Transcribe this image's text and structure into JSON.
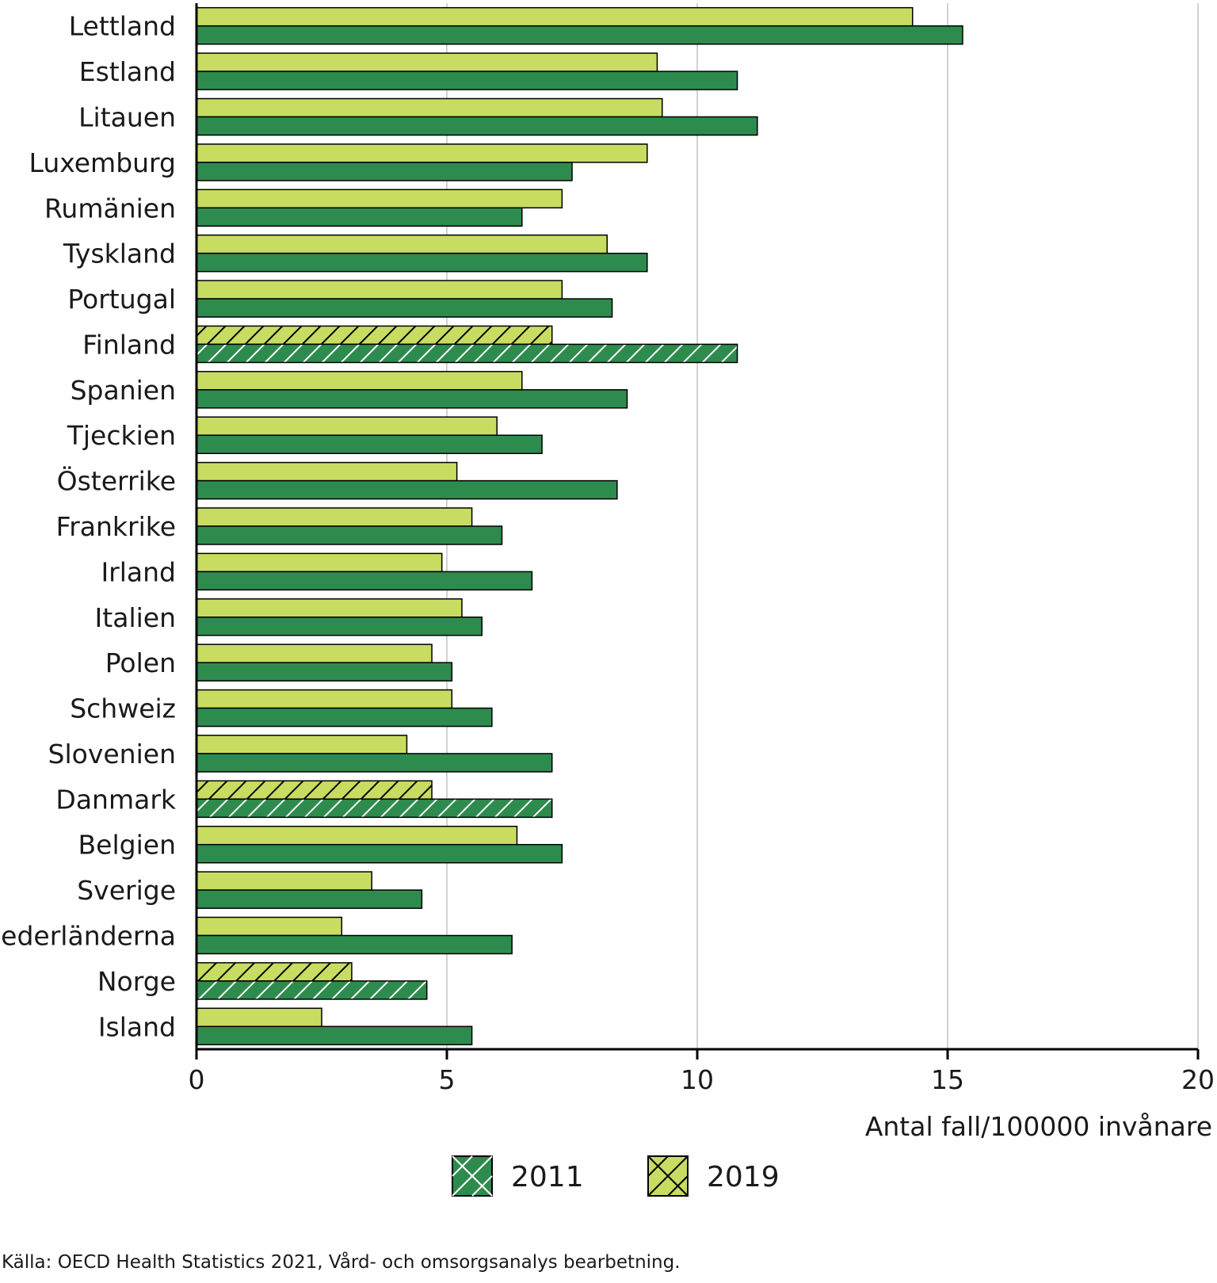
{
  "chart_data": {
    "type": "bar",
    "orientation": "horizontal",
    "categories": [
      "Lettland",
      "Estland",
      "Litauen",
      "Luxemburg",
      "Rumänien",
      "Tyskland",
      "Portugal",
      "Finland",
      "Spanien",
      "Tjeckien",
      "Österrike",
      "Frankrike",
      "Irland",
      "Italien",
      "Polen",
      "Schweiz",
      "Slovenien",
      "Danmark",
      "Belgien",
      "Sverige",
      "Nederländerna",
      "Norge",
      "Island"
    ],
    "series": [
      {
        "name": "2019",
        "values": [
          14.3,
          9.2,
          9.3,
          9.0,
          7.3,
          8.2,
          7.3,
          7.1,
          6.5,
          6.0,
          5.2,
          5.5,
          4.9,
          5.3,
          4.7,
          5.1,
          4.2,
          4.7,
          6.4,
          3.5,
          2.9,
          3.1,
          2.5
        ]
      },
      {
        "name": "2011",
        "values": [
          15.3,
          10.8,
          11.2,
          7.5,
          6.5,
          9.0,
          8.3,
          10.8,
          8.6,
          6.9,
          8.4,
          6.1,
          6.7,
          5.7,
          5.1,
          5.9,
          7.1,
          7.1,
          7.3,
          4.5,
          6.3,
          4.6,
          5.5
        ]
      }
    ],
    "hatched_categories": [
      "Finland",
      "Danmark",
      "Norge"
    ],
    "xlim": [
      0,
      20
    ],
    "xticks": [
      0,
      5,
      10,
      15,
      20
    ],
    "xlabel": "Antal fall/100000 invånare",
    "legend": [
      {
        "label": "2011",
        "series": "2011"
      },
      {
        "label": "2019",
        "series": "2019"
      }
    ],
    "legend_position": "bottom",
    "grid": true,
    "colors": {
      "2011": "#2e8b4e",
      "2019": "#c8dc62",
      "grid": "#c4c4c4",
      "axis": "#000000"
    }
  },
  "source": "Källa: OECD Health Statistics 2021, Vård- och omsorgsanalys bearbetning."
}
